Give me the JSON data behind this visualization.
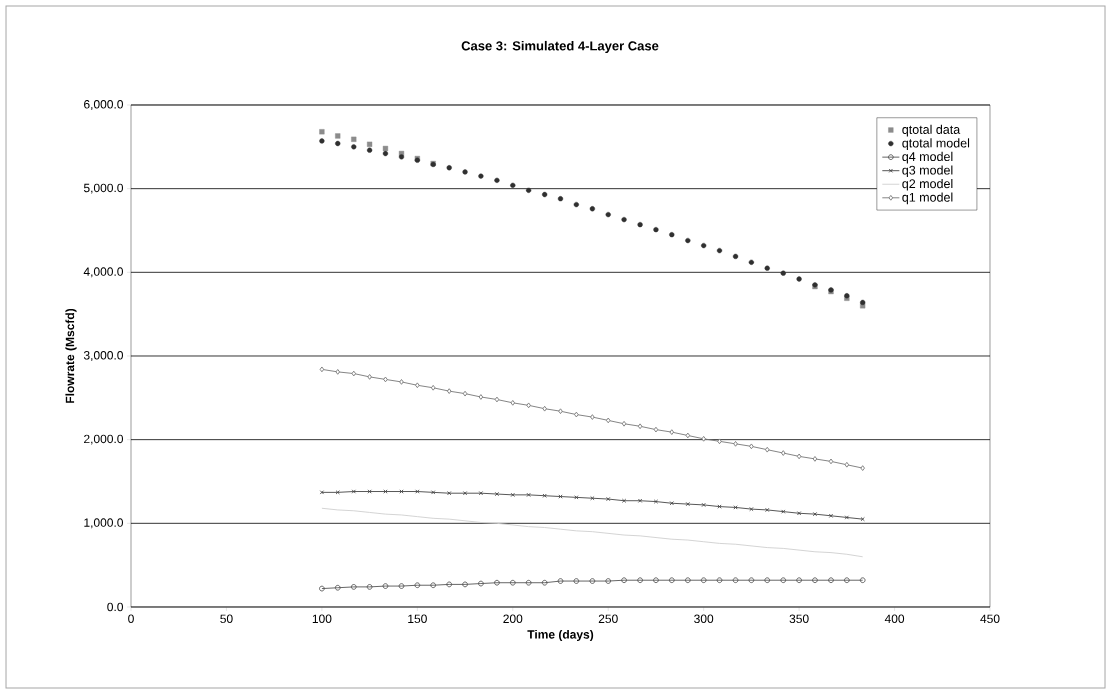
{
  "chart_data": {
    "type": "line",
    "title": "Case 3: Simulated 4-Layer Case",
    "xlabel": "Time (days)",
    "ylabel": "Flowrate (Mscfd)",
    "x": [
      100,
      108.3,
      116.7,
      125,
      133.3,
      141.7,
      150,
      158.3,
      166.7,
      175,
      183.3,
      191.7,
      200,
      208.3,
      216.7,
      225,
      233.3,
      241.7,
      250,
      258.3,
      266.7,
      275,
      283.3,
      291.7,
      300,
      308.3,
      316.7,
      325,
      333.3,
      341.7,
      350,
      358.3,
      366.7,
      375,
      383.3
    ],
    "series": [
      {
        "name": "qtotal data",
        "type": "scatter",
        "marker": "square",
        "color": "#8c8c8c",
        "values": [
          5680,
          5630,
          5590,
          5530,
          5480,
          5420,
          5360,
          5300,
          null,
          null,
          null,
          null,
          null,
          null,
          null,
          null,
          null,
          null,
          null,
          null,
          null,
          null,
          null,
          null,
          null,
          null,
          null,
          null,
          null,
          null,
          null,
          3830,
          3770,
          3690,
          3600
        ]
      },
      {
        "name": "qtotal model",
        "type": "scatter",
        "marker": "circle",
        "color": "#303030",
        "values": [
          5570,
          5540,
          5500,
          5460,
          5420,
          5380,
          5340,
          5290,
          5250,
          5200,
          5150,
          5100,
          5040,
          4980,
          4930,
          4880,
          4810,
          4760,
          4690,
          4630,
          4570,
          4510,
          4450,
          4380,
          4320,
          4260,
          4190,
          4120,
          4050,
          3990,
          3920,
          3850,
          3790,
          3720,
          3640
        ]
      },
      {
        "name": "q4 model",
        "marker": "circle",
        "color": "#555555",
        "values": [
          220,
          230,
          240,
          240,
          250,
          250,
          260,
          260,
          270,
          270,
          280,
          290,
          290,
          290,
          290,
          310,
          310,
          310,
          310,
          320,
          320,
          320,
          320,
          320,
          320,
          320,
          320,
          320,
          320,
          320,
          320,
          320,
          320,
          320,
          320
        ]
      },
      {
        "name": "q3 model",
        "marker": "cross",
        "color": "#444444",
        "values": [
          1370,
          1370,
          1380,
          1380,
          1380,
          1380,
          1380,
          1370,
          1360,
          1360,
          1360,
          1350,
          1340,
          1340,
          1330,
          1320,
          1310,
          1300,
          1290,
          1270,
          1270,
          1260,
          1240,
          1230,
          1220,
          1200,
          1190,
          1170,
          1160,
          1140,
          1120,
          1110,
          1090,
          1070,
          1050
        ]
      },
      {
        "name": "q2 model",
        "marker": "none",
        "color": "#cfcfcf",
        "values": [
          1180,
          1160,
          1150,
          1130,
          1110,
          1100,
          1080,
          1060,
          1050,
          1030,
          1010,
          1000,
          980,
          960,
          950,
          930,
          910,
          900,
          880,
          860,
          850,
          830,
          810,
          800,
          780,
          760,
          750,
          730,
          710,
          700,
          680,
          660,
          650,
          630,
          600
        ]
      },
      {
        "name": "q1 model",
        "marker": "diamond",
        "color": "#777777",
        "values": [
          2840,
          2810,
          2790,
          2750,
          2720,
          2690,
          2650,
          2620,
          2580,
          2550,
          2510,
          2480,
          2440,
          2410,
          2370,
          2340,
          2300,
          2270,
          2230,
          2190,
          2160,
          2120,
          2090,
          2050,
          2010,
          1980,
          1950,
          1920,
          1880,
          1840,
          1800,
          1770,
          1740,
          1700,
          1660
        ]
      }
    ],
    "xlim": [
      0,
      450
    ],
    "xticks": [
      0,
      50,
      100,
      150,
      200,
      250,
      300,
      350,
      400,
      450
    ],
    "ylim": [
      0,
      6000
    ],
    "yticks": [
      {
        "value": 0,
        "label": "0.0"
      },
      {
        "value": 1000,
        "label": "1,000.0"
      },
      {
        "value": 2000,
        "label": "2,000.0"
      },
      {
        "value": 3000,
        "label": "3,000.0"
      },
      {
        "value": 4000,
        "label": "4,000.0"
      },
      {
        "value": 5000,
        "label": "5,000.0"
      },
      {
        "value": 6000,
        "label": "6,000.0"
      }
    ],
    "grid": "y",
    "legend": "top right"
  }
}
